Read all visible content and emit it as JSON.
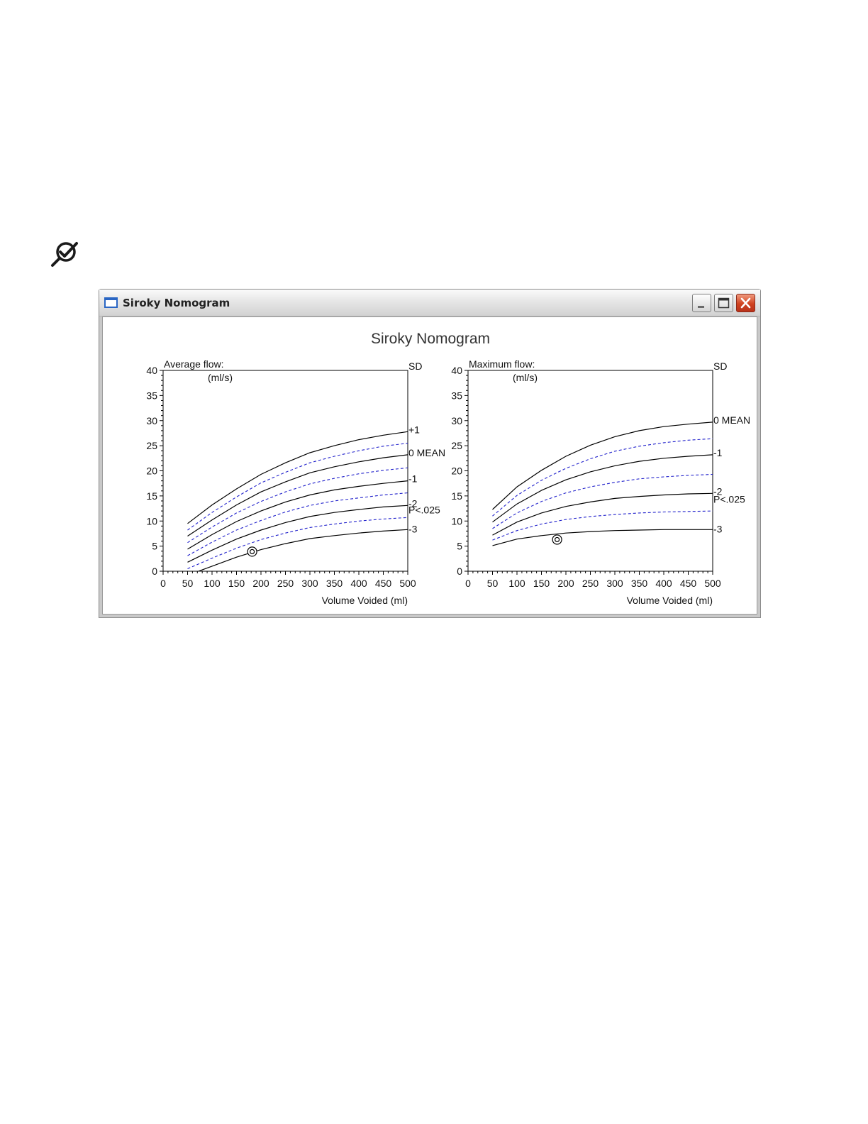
{
  "window": {
    "title": "Siroky Nomogram",
    "heading": "Siroky Nomogram",
    "minimize_icon": "minimize-icon",
    "maximize_icon": "maximize-icon",
    "close_icon": "close-icon",
    "page_icon": "check-magnifier-icon"
  },
  "chart_data": [
    {
      "type": "line",
      "title": "Average flow:",
      "ylabel": "(ml/s)",
      "xlabel": "Volume Voided (ml)",
      "xlim": [
        0,
        500
      ],
      "ylim": [
        0,
        40
      ],
      "xticks": [
        0,
        50,
        100,
        150,
        200,
        250,
        300,
        350,
        400,
        450,
        500
      ],
      "yticks": [
        0,
        5,
        10,
        15,
        20,
        25,
        30,
        35,
        40
      ],
      "right_header": "SD",
      "curve_x": [
        50,
        100,
        150,
        200,
        250,
        300,
        350,
        400,
        450,
        500
      ],
      "solid_series": [
        {
          "label": "+1",
          "values": [
            9.5,
            13.2,
            16.4,
            19.3,
            21.6,
            23.6,
            25.0,
            26.2,
            27.1,
            27.8
          ]
        },
        {
          "label": "0 MEAN",
          "values": [
            7.0,
            10.2,
            13.2,
            15.8,
            17.8,
            19.6,
            20.8,
            21.8,
            22.6,
            23.2
          ]
        },
        {
          "label": "-1",
          "values": [
            4.4,
            7.3,
            9.9,
            12.0,
            13.8,
            15.2,
            16.2,
            16.9,
            17.5,
            18.0
          ]
        },
        {
          "label": "-2",
          "values": [
            1.8,
            4.2,
            6.4,
            8.2,
            9.7,
            10.9,
            11.7,
            12.3,
            12.8,
            13.1
          ]
        },
        {
          "label": "",
          "values": [
            -0.8,
            1.0,
            2.8,
            4.3,
            5.5,
            6.5,
            7.1,
            7.6,
            8.0,
            8.3
          ]
        }
      ],
      "dashed_series": [
        {
          "values": [
            8.2,
            11.7,
            14.8,
            17.6,
            19.7,
            21.6,
            22.9,
            24.0,
            24.9,
            25.5
          ]
        },
        {
          "values": [
            5.7,
            8.8,
            11.6,
            13.9,
            15.8,
            17.4,
            18.5,
            19.4,
            20.1,
            20.6
          ]
        },
        {
          "values": [
            3.1,
            5.8,
            8.2,
            10.1,
            11.8,
            13.1,
            14.0,
            14.6,
            15.2,
            15.6
          ]
        },
        {
          "values": [
            0.5,
            2.6,
            4.6,
            6.3,
            7.6,
            8.7,
            9.4,
            10.0,
            10.4,
            10.7
          ]
        }
      ],
      "extra_labels": [
        {
          "text": "P<.025",
          "y": 12.1
        },
        {
          "text": "-3",
          "y": 8.3
        }
      ],
      "marker": {
        "x": 182,
        "y": 3.9
      }
    },
    {
      "type": "line",
      "title": "Maximum flow:",
      "ylabel": "(ml/s)",
      "xlabel": "Volume Voided (ml)",
      "xlim": [
        0,
        500
      ],
      "ylim": [
        0,
        40
      ],
      "xticks": [
        0,
        50,
        100,
        150,
        200,
        250,
        300,
        350,
        400,
        450,
        500
      ],
      "yticks": [
        0,
        5,
        10,
        15,
        20,
        25,
        30,
        35,
        40
      ],
      "right_header": "SD",
      "curve_x": [
        50,
        100,
        150,
        200,
        250,
        300,
        350,
        400,
        450,
        500
      ],
      "solid_series": [
        {
          "label": "0 MEAN",
          "values": [
            12.3,
            16.8,
            20.1,
            22.9,
            25.1,
            26.8,
            28.0,
            28.8,
            29.3,
            29.7
          ]
        },
        {
          "label": "-1",
          "values": [
            9.8,
            13.4,
            16.1,
            18.2,
            19.8,
            21.0,
            21.9,
            22.5,
            22.9,
            23.2
          ]
        },
        {
          "label": "-2",
          "values": [
            7.2,
            9.8,
            11.6,
            12.9,
            13.8,
            14.5,
            14.9,
            15.2,
            15.4,
            15.5
          ]
        },
        {
          "label": "",
          "values": [
            5.1,
            6.4,
            7.1,
            7.6,
            7.9,
            8.1,
            8.2,
            8.3,
            8.3,
            8.3
          ]
        }
      ],
      "dashed_series": [
        {
          "values": [
            11.0,
            15.1,
            18.1,
            20.5,
            22.4,
            23.9,
            24.9,
            25.6,
            26.1,
            26.4
          ]
        },
        {
          "values": [
            8.5,
            11.6,
            13.9,
            15.6,
            16.8,
            17.7,
            18.4,
            18.8,
            19.1,
            19.3
          ]
        },
        {
          "values": [
            6.2,
            8.1,
            9.4,
            10.3,
            10.9,
            11.3,
            11.6,
            11.8,
            11.9,
            12.0
          ]
        }
      ],
      "extra_labels": [
        {
          "text": "P<.025",
          "y": 14.2
        },
        {
          "text": "-3",
          "y": 8.3
        }
      ],
      "marker": {
        "x": 182,
        "y": 6.3
      }
    }
  ]
}
